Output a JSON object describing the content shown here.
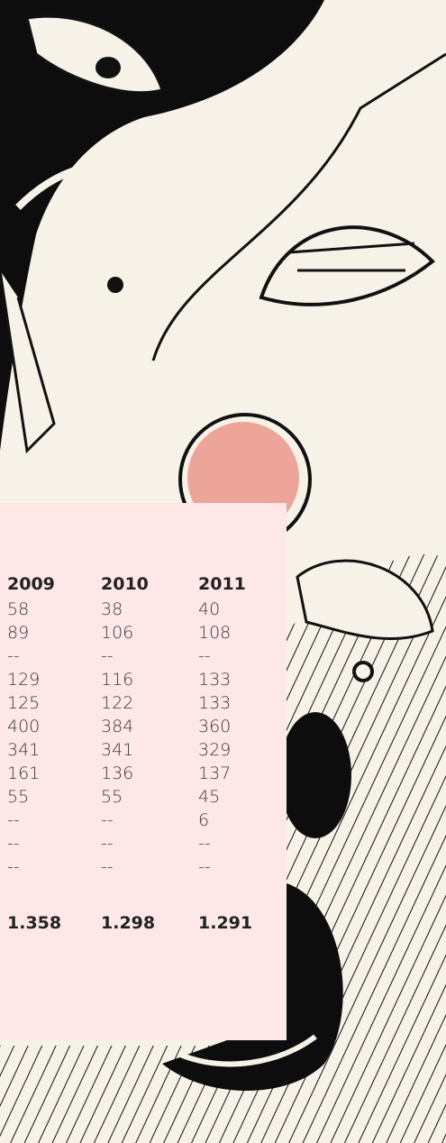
{
  "table": {
    "header": [
      "2009",
      "2010",
      "2011"
    ],
    "rows": [
      [
        "58",
        "38",
        "40"
      ],
      [
        "89",
        "106",
        "108"
      ],
      [
        "--",
        "--",
        "--"
      ],
      [
        "129",
        "116",
        "133"
      ],
      [
        "125",
        "122",
        "133"
      ],
      [
        "400",
        "384",
        "360"
      ],
      [
        "341",
        "341",
        "329"
      ],
      [
        "161",
        "136",
        "137"
      ],
      [
        "55",
        "55",
        "45"
      ],
      [
        "--",
        "--",
        "6"
      ],
      [
        "--",
        "--",
        "--"
      ],
      [
        "--",
        "--",
        "--"
      ]
    ],
    "total": [
      "1.358",
      "1.298",
      "1.291"
    ]
  }
}
